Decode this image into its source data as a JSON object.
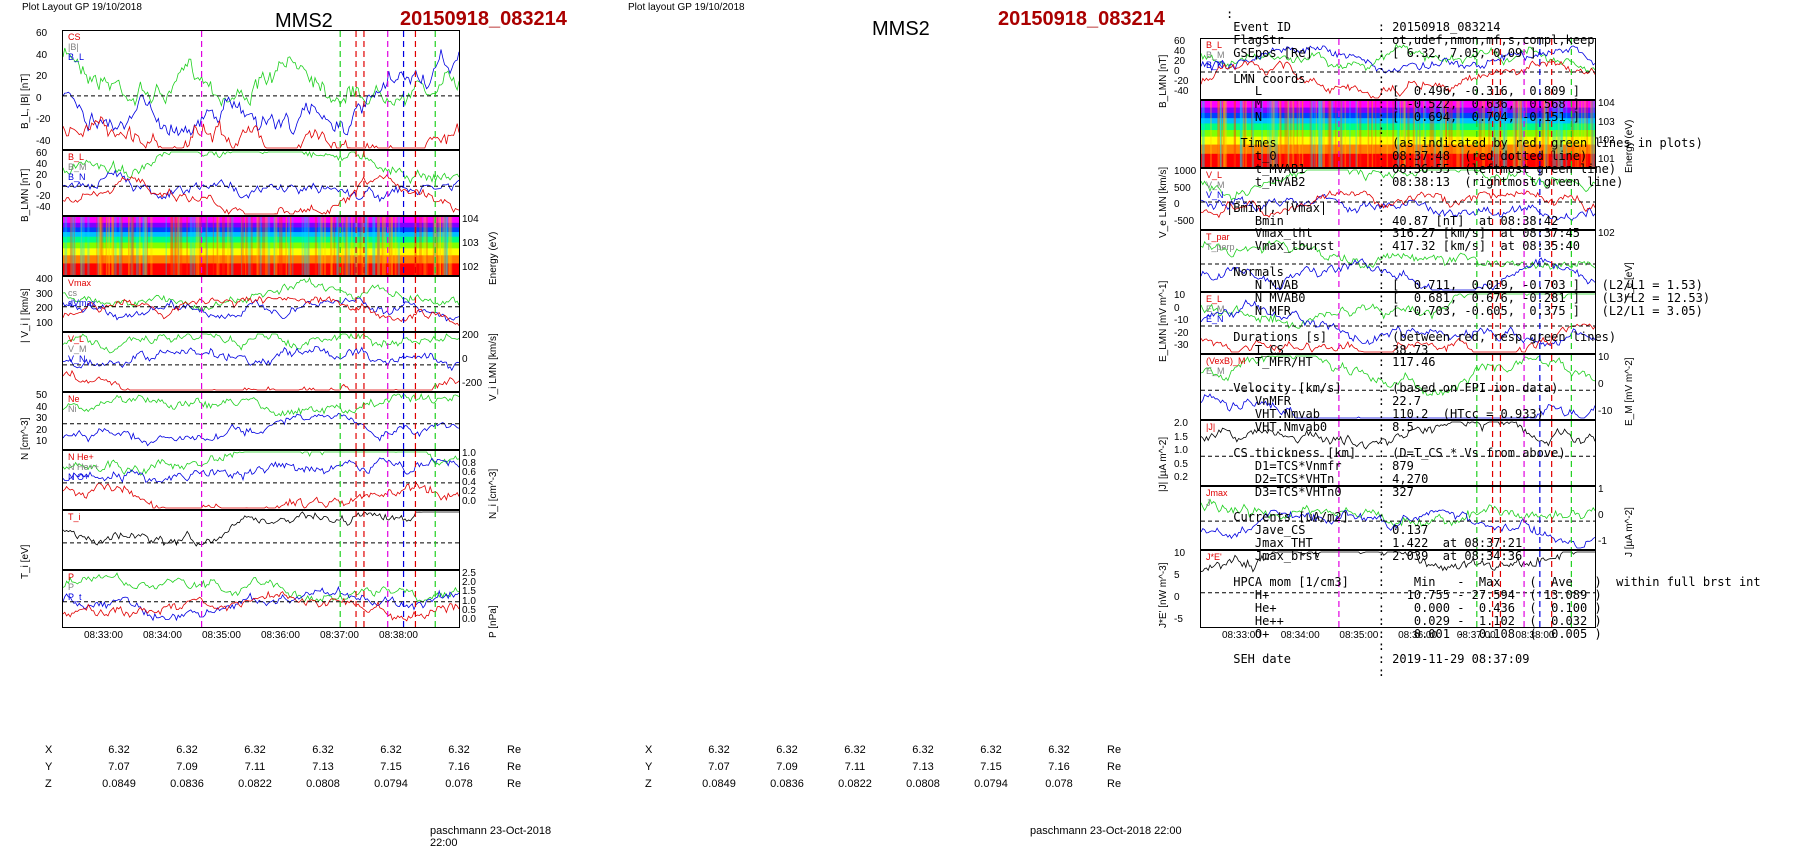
{
  "plot_left": {
    "header": "Plot Layout GP 19/10/2018",
    "title": "MMS2",
    "event": "20150918_083214",
    "footer": "paschmann 23-Oct-2018 22:00",
    "time_ticks": [
      "08:33:00",
      "08:34:00",
      "08:35:00",
      "08:36:00",
      "08:37:00",
      "08:38:00"
    ],
    "coords": {
      "X": [
        "6.32",
        "6.32",
        "6.32",
        "6.32",
        "6.32",
        "6.32"
      ],
      "Y": [
        "7.07",
        "7.09",
        "7.11",
        "7.13",
        "7.15",
        "7.16"
      ],
      "Z": [
        "0.0849",
        "0.0836",
        "0.0822",
        "0.0808",
        "0.0794",
        "0.078"
      ],
      "unit": "Re"
    },
    "panels": [
      {
        "ylabel": "B_L, |B| [nT]",
        "ticks": [
          "60",
          "40",
          "20",
          "0",
          "-20",
          "-40"
        ],
        "legend": [
          "CS",
          "|B|",
          "B_L"
        ]
      },
      {
        "ylabel": "B_LMN [nT]",
        "ticks": [
          "60",
          "40",
          "20",
          "0",
          "-20",
          "-40"
        ],
        "legend": [
          "B_L",
          "B_M",
          "B_N"
        ]
      },
      {
        "ylabel": "Energy (eV)",
        "ticks": [
          "10^4",
          "10^3",
          "10^2"
        ]
      },
      {
        "ylabel": "| V_i | [km/s]",
        "ticks": [
          "400",
          "300",
          "200",
          "100"
        ],
        "legend": [
          "Vmax",
          "cs",
          "dVmax"
        ]
      },
      {
        "ylabel": "V_i LMN [km/s]",
        "ticks": [
          "200",
          "0",
          "-200"
        ],
        "legend": [
          "V_L",
          "V_M",
          "V_N"
        ]
      },
      {
        "ylabel": "N [cm^-3]",
        "ticks": [
          "50",
          "40",
          "30",
          "20",
          "10"
        ],
        "legend": [
          "Ne",
          "Ni"
        ]
      },
      {
        "ylabel": "N_i [cm^-3]",
        "ticks": [
          "1.0",
          "0.8",
          "0.6",
          "0.4",
          "0.2",
          "0.0"
        ],
        "legend": [
          "N  He+",
          "N  He++",
          "N  O+"
        ]
      },
      {
        "ylabel": "T_i [eV]",
        "ticks": [],
        "legend": [
          "T_i"
        ]
      },
      {
        "ylabel": "P [nPa]",
        "ticks": [
          "2.5",
          "2.0",
          "1.5",
          "1.0",
          "0.5",
          "0.0"
        ],
        "legend": [
          "P",
          "P",
          "P_t"
        ]
      }
    ]
  },
  "plot_right": {
    "header": "Plot layout GP 19/10/2018",
    "title": "MMS2",
    "event": "20150918_083214",
    "footer": "paschmann 23-Oct-2018 22:00",
    "time_ticks": [
      "08:33:00",
      "08:34:00",
      "08:35:00",
      "08:36:00",
      "08:37:00",
      "08:38:00"
    ],
    "coords": {
      "X": [
        "6.32",
        "6.32",
        "6.32",
        "6.32",
        "6.32",
        "6.32"
      ],
      "Y": [
        "7.07",
        "7.09",
        "7.11",
        "7.13",
        "7.15",
        "7.16"
      ],
      "Z": [
        "0.0849",
        "0.0836",
        "0.0822",
        "0.0808",
        "0.0794",
        "0.078"
      ],
      "unit": "Re"
    },
    "panels": [
      {
        "ylabel": "B_LMN [nT]",
        "ticks": [
          "60",
          "40",
          "20",
          "0",
          "-20",
          "-40"
        ],
        "legend": [
          "B_L",
          "B_M",
          "B_N"
        ]
      },
      {
        "ylabel": "Energy (eV)",
        "ticks": [
          "10^4",
          "10^3",
          "10^2",
          "10^1"
        ]
      },
      {
        "ylabel": "V_e LMN [km/s]",
        "ticks": [
          "1000",
          "500",
          "0",
          "-500"
        ],
        "legend": [
          "V_L",
          "V_M",
          "V_N"
        ]
      },
      {
        "ylabel": "T_e [eV]",
        "ticks": [
          "10^2"
        ],
        "legend": [
          "T_par",
          "T_perp"
        ]
      },
      {
        "ylabel": "E_LMN [mV m^-1]",
        "ticks": [
          "10",
          "0",
          "-10",
          "-20",
          "-30"
        ],
        "legend": [
          "E_L",
          "E_M",
          "E_N"
        ]
      },
      {
        "ylabel": "E_M [mV m^-2]",
        "ticks": [
          "10",
          "0",
          "-10"
        ],
        "legend": [
          "(VexB)_M",
          "E_M"
        ]
      },
      {
        "ylabel": "|J| [µA m^-2]",
        "ticks": [
          "2.0",
          "1.5",
          "1.0",
          "0.5",
          "0.2"
        ],
        "legend": [
          "|J|"
        ]
      },
      {
        "ylabel": "J [µA m^-2]",
        "ticks": [
          "1",
          "0",
          "-1"
        ],
        "legend": [
          "Jmax",
          "J"
        ]
      },
      {
        "ylabel": "J*E' [nW m^-3]",
        "ticks": [
          "10",
          "5",
          "0",
          "-5"
        ],
        "legend": [
          "J*E'"
        ]
      }
    ]
  },
  "info_text": ":\n Event ID            : 20150918_083214\n FlagStr             : ot,udef,nmon,mf,s,compl,keep\n GSEpos [Re]         : [ 6.32, 7.05, 0.09 ]\n                     :\n LMN coords          :\n    L                : [  0.496, -0.316,  0.809 ]\n    M                : [ -0.522,  0.636,  0.568 ]\n    N                : [  0.694,  0.704, -0.151 ]\n                     :\n  Times              : (as indicated by red, green lines in plots)\n    t_0              : 08:37:48  (red dotted line)\n    t_MVAB1          : 08:36:55  (leftmost green line)\n    t_MVAB2          : 08:38:13  (rightmost green line)\n                     :\n|Bmin|, |Vmax|       :\n    Bmin             : 40.87 [nT]  at 08:38:42\n    Vmax_tht         : 316.27 [km/s]  at 08:37:45\n    Vmax_tburst      : 417.32 [km/s]  at 08:35:40\n                     :\n Normals             :\n    N MVAB           : [  0.711,  0.019, -0.703 ]   (L2/L1 = 1.53)\n    N MVAB0          : [  0.681,  0.676, -0.281 ]   (L3/L2 = 12.53)\n    N MFR            : [ -0.703, -0.605,  0.375 ]   (L2/L1 = 3.05)\n                     :\n Durations [s]       : (between red, resp green lines)\n    T_CS             : 38.73\n    T_MFR/HT         : 117.46\n                     :\n Velocity [km/s]     : (based on FPI ion data)\n    VnMFR            : 22.7\n    VHT.Nmvab        : 110.2  (HTcc = 0.933)\n    VHT.Nmvab0       : 8.5\n                     :\n CS thickness [km]   : (D=T_CS * Vs from above)\n    D1=TCS*Vnmfr     : 879\n    D2=TCS*VHTn      : 4,270\n    D3=TCS*VHTn0     : 327\n                     :\n Currents [uA/m2]    :\n    Jave_CS          : 0.137\n    Jmax_THT         : 1.422  at 08:37:21\n    Jmax_brst        : 2.039  at 08:34:36\n                     :\n HPCA mom [1/cm3]    :    Min   -  Max    (  Ave   )  within full brst int\n    H+               :   10.755 - 27.594  ( 13.089 )\n    He+              :    0.000 -  0.436  (  0.100 )\n    He++             :    0.029 -  1.102  (  0.032 )\n    O+               :    0.001 -  0.108  (  0.005 )\n                     :\n SEH date            : 2019-11-29 08:37:09\n                     :",
  "colors": {
    "red": "#e00000",
    "green": "#20d020",
    "blue": "#0000e0",
    "magenta": "#e000e0",
    "gray": "#808080",
    "black": "#000000",
    "title_event": "#aa0000"
  },
  "chart_data": [
    {
      "type": "line",
      "title": "MMS2",
      "x": [
        "08:33:00",
        "08:34:00",
        "08:35:00",
        "08:36:00",
        "08:37:00",
        "08:38:00"
      ],
      "series": [
        {
          "name": "|B|",
          "values": [
            44,
            47,
            48,
            46,
            55,
            41
          ]
        },
        {
          "name": "B_L",
          "values": [
            40,
            36,
            33,
            38,
            44,
            -32
          ]
        }
      ],
      "ylabel": "B_L, |B| [nT]",
      "ylim": [
        -50,
        65
      ]
    },
    {
      "type": "line",
      "title": "MMS2",
      "x": [
        "08:33:00",
        "08:34:00",
        "08:35:00",
        "08:36:00",
        "08:37:00",
        "08:38:00"
      ],
      "series": [
        {
          "name": "Ne",
          "values": [
            12,
            40,
            25,
            28,
            20,
            30
          ]
        },
        {
          "name": "Ni",
          "values": [
            12,
            40,
            25,
            28,
            20,
            30
          ]
        }
      ],
      "ylabel": "N [cm^-3]",
      "ylim": [
        0,
        55
      ]
    },
    {
      "type": "line",
      "title": "MMS2",
      "x": [
        "08:33:00",
        "08:34:00",
        "08:35:00",
        "08:36:00",
        "08:37:00",
        "08:38:00"
      ],
      "series": [
        {
          "name": "|J|",
          "values": [
            0.4,
            0.45,
            0.4,
            0.4,
            0.45,
            0.35
          ]
        }
      ],
      "ylabel": "|J| [µA m^-2]",
      "ylim": [
        0,
        2.0
      ]
    }
  ]
}
